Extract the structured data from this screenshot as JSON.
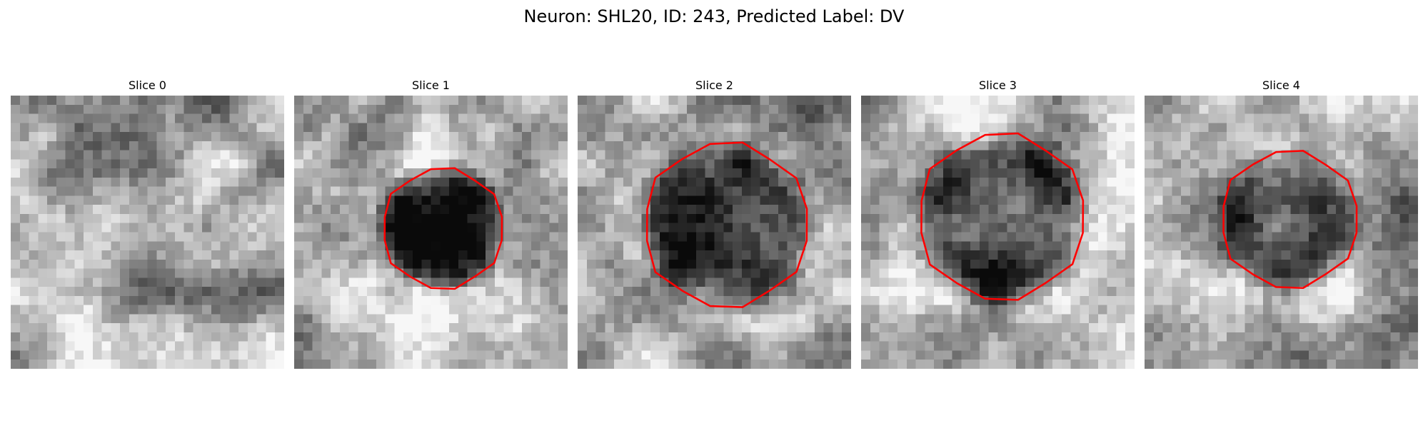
{
  "figure": {
    "title": "Neuron: SHL20, ID: 243, Predicted Label: DV"
  },
  "panels": [
    {
      "title": "Slice 0",
      "has_outline": false
    },
    {
      "title": "Slice 1",
      "has_outline": true
    },
    {
      "title": "Slice 2",
      "has_outline": true
    },
    {
      "title": "Slice 3",
      "has_outline": true
    },
    {
      "title": "Slice 4",
      "has_outline": true
    }
  ],
  "colors": {
    "outline": "#ff0000",
    "background": "#ffffff"
  }
}
